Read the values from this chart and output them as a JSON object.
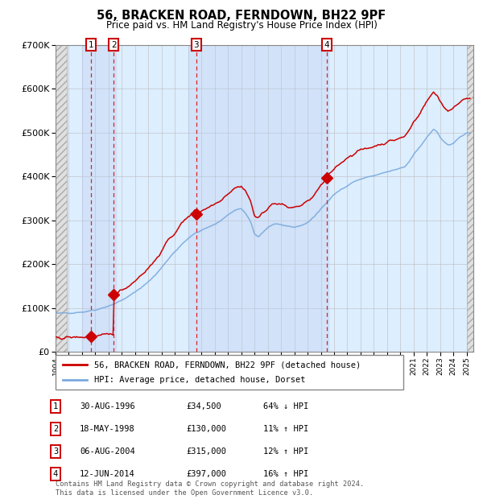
{
  "title": "56, BRACKEN ROAD, FERNDOWN, BH22 9PF",
  "subtitle": "Price paid vs. HM Land Registry's House Price Index (HPI)",
  "footer": "Contains HM Land Registry data © Crown copyright and database right 2024.\nThis data is licensed under the Open Government Licence v3.0.",
  "legend_line1": "56, BRACKEN ROAD, FERNDOWN, BH22 9PF (detached house)",
  "legend_line2": "HPI: Average price, detached house, Dorset",
  "transactions": [
    {
      "num": 1,
      "date": "30-AUG-1996",
      "year": 1996.67,
      "price": 34500,
      "pct": "64% ↓ HPI"
    },
    {
      "num": 2,
      "date": "18-MAY-1998",
      "year": 1998.38,
      "price": 130000,
      "pct": "11% ↑ HPI"
    },
    {
      "num": 3,
      "date": "06-AUG-2004",
      "year": 2004.6,
      "price": 315000,
      "pct": "12% ↑ HPI"
    },
    {
      "num": 4,
      "date": "12-JUN-2014",
      "year": 2014.45,
      "price": 397000,
      "pct": "16% ↑ HPI"
    }
  ],
  "ylim": [
    0,
    700000
  ],
  "xlim_start": 1994.0,
  "xlim_end": 2025.5,
  "hpi_color": "#7aaadd",
  "price_color": "#cc0000",
  "dot_color": "#cc0000",
  "bg_plot": "#ddeeff",
  "grid_color": "#bbbbbb",
  "dashed_color": "#dd2222",
  "shade_color": "#bbccee",
  "shade_alpha": 0.6,
  "hpi_anchors": [
    [
      1994.0,
      87000
    ],
    [
      1995.0,
      89000
    ],
    [
      1996.0,
      91000
    ],
    [
      1996.5,
      93000
    ],
    [
      1997.0,
      96000
    ],
    [
      1997.5,
      100000
    ],
    [
      1998.0,
      105000
    ],
    [
      1998.5,
      110000
    ],
    [
      1999.0,
      118000
    ],
    [
      1999.5,
      126000
    ],
    [
      2000.0,
      136000
    ],
    [
      2000.5,
      148000
    ],
    [
      2001.0,
      160000
    ],
    [
      2001.5,
      174000
    ],
    [
      2002.0,
      193000
    ],
    [
      2002.5,
      212000
    ],
    [
      2003.0,
      228000
    ],
    [
      2003.5,
      244000
    ],
    [
      2004.0,
      258000
    ],
    [
      2004.5,
      270000
    ],
    [
      2005.0,
      278000
    ],
    [
      2005.5,
      284000
    ],
    [
      2006.0,
      291000
    ],
    [
      2006.5,
      300000
    ],
    [
      2007.0,
      312000
    ],
    [
      2007.5,
      322000
    ],
    [
      2008.0,
      326000
    ],
    [
      2008.3,
      318000
    ],
    [
      2008.7,
      296000
    ],
    [
      2009.0,
      268000
    ],
    [
      2009.3,
      262000
    ],
    [
      2009.6,
      272000
    ],
    [
      2010.0,
      284000
    ],
    [
      2010.5,
      292000
    ],
    [
      2011.0,
      290000
    ],
    [
      2011.5,
      284000
    ],
    [
      2012.0,
      284000
    ],
    [
      2012.5,
      288000
    ],
    [
      2013.0,
      295000
    ],
    [
      2013.5,
      308000
    ],
    [
      2014.0,
      326000
    ],
    [
      2014.5,
      342000
    ],
    [
      2015.0,
      358000
    ],
    [
      2015.5,
      370000
    ],
    [
      2016.0,
      380000
    ],
    [
      2016.5,
      388000
    ],
    [
      2017.0,
      394000
    ],
    [
      2017.5,
      398000
    ],
    [
      2018.0,
      402000
    ],
    [
      2018.5,
      406000
    ],
    [
      2019.0,
      410000
    ],
    [
      2019.5,
      414000
    ],
    [
      2020.0,
      418000
    ],
    [
      2020.3,
      420000
    ],
    [
      2020.7,
      435000
    ],
    [
      2021.0,
      450000
    ],
    [
      2021.5,
      468000
    ],
    [
      2022.0,
      490000
    ],
    [
      2022.5,
      508000
    ],
    [
      2022.8,
      502000
    ],
    [
      2023.0,
      490000
    ],
    [
      2023.3,
      478000
    ],
    [
      2023.6,
      472000
    ],
    [
      2024.0,
      475000
    ],
    [
      2024.5,
      490000
    ],
    [
      2025.0,
      498000
    ]
  ]
}
